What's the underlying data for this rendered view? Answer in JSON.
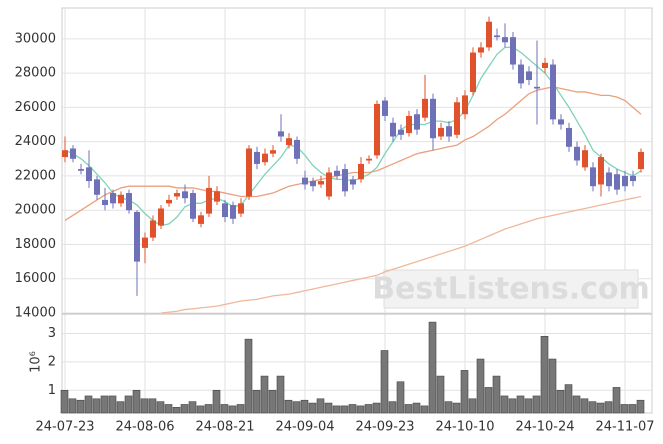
{
  "chart_data": {
    "type": "candlestick",
    "categories": [
      "24-07-23",
      null,
      null,
      null,
      null,
      null,
      null,
      null,
      null,
      null,
      "24-08-06",
      null,
      null,
      null,
      null,
      null,
      null,
      null,
      null,
      null,
      "24-08-21",
      null,
      null,
      null,
      null,
      null,
      null,
      null,
      null,
      null,
      "24-09-04",
      null,
      null,
      null,
      null,
      null,
      null,
      null,
      null,
      null,
      "24-09-23",
      null,
      null,
      null,
      null,
      null,
      null,
      null,
      null,
      null,
      "24-10-10",
      null,
      null,
      null,
      null,
      null,
      null,
      null,
      null,
      null,
      "24-10-24",
      null,
      null,
      null,
      null,
      null,
      null,
      null,
      null,
      null,
      "24-11-07",
      null,
      null
    ],
    "open": [
      23100,
      23600,
      22400,
      22500,
      21800,
      20600,
      21000,
      20400,
      21000,
      19900,
      17800,
      18400,
      19100,
      20400,
      20800,
      21100,
      21000,
      19200,
      19800,
      20500,
      20400,
      20300,
      19800,
      20800,
      23400,
      22800,
      23300,
      24600,
      23800,
      24100,
      21900,
      21700,
      21500,
      20800,
      22300,
      22400,
      21800,
      21800,
      22900,
      23200,
      26400,
      25100,
      24700,
      24500,
      25600,
      25400,
      26500,
      24300,
      24900,
      24400,
      25600,
      26900,
      29200,
      29500,
      30200,
      30100,
      30100,
      28500,
      28100,
      27200,
      28300,
      28500,
      25300,
      24800,
      23700,
      22500,
      22500,
      21500,
      22200,
      22100,
      22000,
      22000,
      22400
    ],
    "high": [
      24300,
      23800,
      22700,
      23500,
      22000,
      21300,
      21200,
      21100,
      21200,
      20000,
      18700,
      19700,
      20300,
      20900,
      21200,
      21500,
      21200,
      19900,
      22000,
      21400,
      20600,
      20500,
      20700,
      23800,
      23700,
      23600,
      23800,
      25600,
      24500,
      24300,
      22300,
      21900,
      22000,
      22500,
      22600,
      22700,
      22000,
      23100,
      23200,
      26400,
      26600,
      25400,
      25000,
      25800,
      25900,
      27900,
      26800,
      25100,
      25200,
      26600,
      27000,
      29500,
      29800,
      31300,
      30600,
      30900,
      30400,
      28800,
      28400,
      29900,
      28900,
      28800,
      25600,
      25100,
      24000,
      23800,
      22800,
      23300,
      22500,
      22400,
      22300,
      22300,
      23600
    ],
    "low": [
      22800,
      22800,
      22100,
      21300,
      20600,
      20000,
      20100,
      20200,
      19800,
      15000,
      16900,
      18200,
      18900,
      20200,
      20600,
      20400,
      19300,
      19000,
      19600,
      20300,
      19300,
      19200,
      19600,
      20600,
      22400,
      22600,
      23100,
      24000,
      23600,
      22700,
      21200,
      21100,
      21300,
      20600,
      21800,
      20800,
      21200,
      21600,
      22700,
      23000,
      25200,
      24000,
      24100,
      24300,
      24400,
      25200,
      23500,
      24100,
      24000,
      24200,
      25300,
      26700,
      28900,
      29300,
      29900,
      29500,
      28200,
      27100,
      27300,
      25000,
      28000,
      25000,
      24700,
      23400,
      22600,
      22300,
      21100,
      20800,
      21100,
      20900,
      21100,
      21400,
      22200
    ],
    "close": [
      23500,
      23000,
      22300,
      21700,
      20900,
      20300,
      20400,
      20900,
      20000,
      17000,
      18400,
      19400,
      20100,
      20600,
      21000,
      20700,
      19500,
      19700,
      21300,
      21100,
      19600,
      19500,
      20400,
      23600,
      22700,
      23300,
      23500,
      24300,
      24200,
      23000,
      21500,
      21400,
      21700,
      22200,
      22000,
      21100,
      21500,
      22700,
      23000,
      26200,
      25500,
      24300,
      24400,
      25500,
      24700,
      26500,
      24200,
      24800,
      24300,
      26300,
      26700,
      29200,
      29500,
      31000,
      30100,
      29800,
      28500,
      27400,
      27600,
      27100,
      28600,
      25300,
      25000,
      23700,
      22900,
      23500,
      21400,
      23100,
      21400,
      21200,
      21400,
      21700,
      23400
    ],
    "up_color": "#e0522b",
    "down_color": "#6e71b8",
    "ylim": [
      14000,
      31800
    ],
    "yticks": [
      14000,
      16000,
      18000,
      20000,
      22000,
      24000,
      26000,
      28000,
      30000
    ],
    "grid": true,
    "lines": [
      {
        "color": "#7fd3b8",
        "values": [
          23500,
          23300,
          23000,
          22600,
          22100,
          21600,
          21000,
          20700,
          20600,
          20300,
          19800,
          19400,
          19100,
          19200,
          19600,
          20200,
          20400,
          20400,
          20600,
          20700,
          20500,
          20200,
          20300,
          20900,
          21500,
          22100,
          22600,
          23100,
          23800,
          23700,
          23200,
          22600,
          22200,
          21900,
          21800,
          21800,
          21700,
          21900,
          22100,
          22500,
          23300,
          24000,
          24700,
          25000,
          25000,
          25000,
          25200,
          25200,
          25100,
          25300,
          25800,
          26700,
          27700,
          28400,
          29100,
          29500,
          29500,
          29200,
          28800,
          28400,
          28000,
          27400,
          26700,
          26000,
          25200,
          24400,
          23500,
          23100,
          22700,
          22400,
          22200,
          22000,
          22300
        ]
      },
      {
        "color": "#ec9f7c",
        "values": [
          19400,
          19700,
          20000,
          20300,
          20600,
          20900,
          21100,
          21300,
          21400,
          21400,
          21400,
          21400,
          21400,
          21400,
          21300,
          21300,
          21300,
          21200,
          21100,
          21100,
          21000,
          20900,
          20800,
          20800,
          20800,
          20900,
          21000,
          21200,
          21400,
          21500,
          21600,
          21700,
          21800,
          21900,
          22000,
          22100,
          22200,
          22200,
          22200,
          22300,
          22500,
          22700,
          22900,
          23100,
          23300,
          23400,
          23500,
          23600,
          23700,
          23800,
          24100,
          24300,
          24600,
          24900,
          25300,
          25600,
          26000,
          26400,
          26800,
          27000,
          27100,
          27200,
          27100,
          27000,
          26900,
          26900,
          26800,
          26700,
          26700,
          26600,
          26400,
          26000,
          25600
        ]
      },
      {
        "color": "#f0b89a",
        "values": [
          null,
          null,
          null,
          null,
          null,
          null,
          null,
          null,
          null,
          null,
          null,
          null,
          14000,
          14050,
          14100,
          14200,
          14250,
          14300,
          14350,
          14400,
          14500,
          14600,
          14700,
          14750,
          14800,
          14900,
          15000,
          15050,
          15100,
          15200,
          15300,
          15400,
          15500,
          15600,
          15700,
          15800,
          15900,
          16000,
          16100,
          16200,
          16400,
          16550,
          16700,
          16850,
          17000,
          17150,
          17300,
          17450,
          17600,
          17750,
          17900,
          18100,
          18300,
          18500,
          18700,
          18900,
          19050,
          19200,
          19350,
          19500,
          19600,
          19700,
          19800,
          19900,
          20000,
          20100,
          20200,
          20300,
          20400,
          20500,
          20600,
          20700,
          20800
        ]
      }
    ],
    "volume": {
      "values": [
        1.0,
        0.7,
        0.65,
        0.8,
        0.7,
        0.8,
        0.8,
        0.6,
        0.8,
        1.0,
        0.7,
        0.7,
        0.6,
        0.5,
        0.4,
        0.5,
        0.6,
        0.45,
        0.5,
        1.0,
        0.5,
        0.45,
        0.5,
        2.8,
        1.0,
        1.5,
        1.0,
        1.5,
        0.65,
        0.6,
        0.65,
        0.55,
        0.7,
        0.55,
        0.45,
        0.45,
        0.5,
        0.45,
        0.5,
        0.55,
        2.4,
        0.6,
        1.3,
        0.5,
        0.55,
        0.45,
        3.4,
        1.5,
        0.6,
        0.55,
        1.7,
        0.7,
        2.1,
        1.1,
        1.5,
        0.8,
        0.7,
        0.8,
        0.7,
        0.8,
        2.9,
        2.1,
        1.0,
        1.2,
        0.8,
        0.7,
        0.6,
        0.55,
        0.6,
        1.1,
        0.5,
        0.5,
        0.65
      ],
      "color": "#777777",
      "ylim": [
        0.2,
        3.65
      ],
      "yticks": [
        1,
        2,
        3
      ],
      "unit": "10⁶"
    },
    "watermark": "BestListens.com"
  }
}
